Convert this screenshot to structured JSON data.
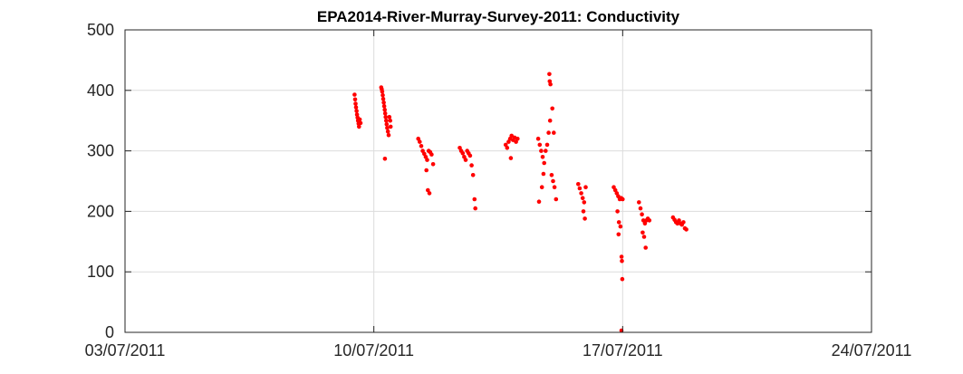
{
  "chart_data": {
    "type": "scatter",
    "title": "EPA2014-River-Murray-Survey-2011: Conductivity",
    "xlabel": "",
    "ylabel": "",
    "x_is_date": true,
    "xlim": [
      "2011-07-03",
      "2011-07-24"
    ],
    "ylim": [
      0,
      500
    ],
    "x_ticks": [
      {
        "value": "2011-07-03",
        "label": "03/07/2011"
      },
      {
        "value": "2011-07-10",
        "label": "10/07/2011"
      },
      {
        "value": "2011-07-17",
        "label": "17/07/2011"
      },
      {
        "value": "2011-07-24",
        "label": "24/07/2011"
      }
    ],
    "y_ticks": [
      0,
      100,
      200,
      300,
      400,
      500
    ],
    "grid": true,
    "marker_color": "#ff0000",
    "series": [
      {
        "name": "",
        "points": [
          [
            "2011-07-09T11:00",
            393
          ],
          [
            "2011-07-09T11:20",
            385
          ],
          [
            "2011-07-09T11:40",
            378
          ],
          [
            "2011-07-09T12:00",
            372
          ],
          [
            "2011-07-09T12:20",
            366
          ],
          [
            "2011-07-09T12:40",
            360
          ],
          [
            "2011-07-09T13:00",
            355
          ],
          [
            "2011-07-09T13:20",
            350
          ],
          [
            "2011-07-09T13:40",
            345
          ],
          [
            "2011-07-09T14:00",
            340
          ],
          [
            "2011-07-09T14:30",
            352
          ],
          [
            "2011-07-09T15:00",
            346
          ],
          [
            "2011-07-10T05:00",
            405
          ],
          [
            "2011-07-10T05:20",
            402
          ],
          [
            "2011-07-10T05:40",
            398
          ],
          [
            "2011-07-10T06:00",
            392
          ],
          [
            "2011-07-10T06:20",
            386
          ],
          [
            "2011-07-10T06:40",
            380
          ],
          [
            "2011-07-10T07:00",
            374
          ],
          [
            "2011-07-10T07:20",
            368
          ],
          [
            "2011-07-10T07:40",
            362
          ],
          [
            "2011-07-10T08:00",
            356
          ],
          [
            "2011-07-10T08:20",
            350
          ],
          [
            "2011-07-10T08:40",
            344
          ],
          [
            "2011-07-10T09:00",
            338
          ],
          [
            "2011-07-10T09:30",
            332
          ],
          [
            "2011-07-10T10:00",
            326
          ],
          [
            "2011-07-10T10:30",
            356
          ],
          [
            "2011-07-10T11:00",
            350
          ],
          [
            "2011-07-10T11:20",
            340
          ],
          [
            "2011-07-10T07:30",
            287
          ],
          [
            "2011-07-11T06:00",
            320
          ],
          [
            "2011-07-11T07:00",
            315
          ],
          [
            "2011-07-11T08:00",
            308
          ],
          [
            "2011-07-11T09:00",
            300
          ],
          [
            "2011-07-11T10:00",
            295
          ],
          [
            "2011-07-11T11:00",
            290
          ],
          [
            "2011-07-11T12:00",
            285
          ],
          [
            "2011-07-11T13:00",
            300
          ],
          [
            "2011-07-11T14:00",
            298
          ],
          [
            "2011-07-11T15:00",
            294
          ],
          [
            "2011-07-11T16:00",
            278
          ],
          [
            "2011-07-11T11:30",
            268
          ],
          [
            "2011-07-11T12:30",
            235
          ],
          [
            "2011-07-11T13:30",
            230
          ],
          [
            "2011-07-12T10:00",
            305
          ],
          [
            "2011-07-12T11:00",
            300
          ],
          [
            "2011-07-12T12:00",
            296
          ],
          [
            "2011-07-12T13:00",
            290
          ],
          [
            "2011-07-12T14:00",
            285
          ],
          [
            "2011-07-12T15:00",
            300
          ],
          [
            "2011-07-12T16:00",
            296
          ],
          [
            "2011-07-12T17:00",
            292
          ],
          [
            "2011-07-12T18:00",
            276
          ],
          [
            "2011-07-12T19:00",
            260
          ],
          [
            "2011-07-12T20:00",
            220
          ],
          [
            "2011-07-12T20:30",
            205
          ],
          [
            "2011-07-13T17:00",
            310
          ],
          [
            "2011-07-13T18:00",
            305
          ],
          [
            "2011-07-13T19:00",
            315
          ],
          [
            "2011-07-13T20:00",
            320
          ],
          [
            "2011-07-13T21:00",
            325
          ],
          [
            "2011-07-13T22:00",
            318
          ],
          [
            "2011-07-13T23:00",
            322
          ],
          [
            "2011-07-14T00:00",
            315
          ],
          [
            "2011-07-14T01:00",
            320
          ],
          [
            "2011-07-13T20:30",
            288
          ],
          [
            "2011-07-14T15:00",
            320
          ],
          [
            "2011-07-14T16:00",
            310
          ],
          [
            "2011-07-14T17:00",
            300
          ],
          [
            "2011-07-14T18:00",
            290
          ],
          [
            "2011-07-14T19:00",
            280
          ],
          [
            "2011-07-14T20:00",
            300
          ],
          [
            "2011-07-14T21:00",
            310
          ],
          [
            "2011-07-14T22:00",
            330
          ],
          [
            "2011-07-14T23:00",
            350
          ],
          [
            "2011-07-14T22:30",
            427
          ],
          [
            "2011-07-14T22:45",
            415
          ],
          [
            "2011-07-14T23:15",
            410
          ],
          [
            "2011-07-14T17:30",
            240
          ],
          [
            "2011-07-14T15:30",
            216
          ],
          [
            "2011-07-14T18:30",
            262
          ],
          [
            "2011-07-15T00:00",
            260
          ],
          [
            "2011-07-15T01:00",
            250
          ],
          [
            "2011-07-15T02:00",
            240
          ],
          [
            "2011-07-15T03:00",
            220
          ],
          [
            "2011-07-15T00:30",
            370
          ],
          [
            "2011-07-15T01:30",
            330
          ],
          [
            "2011-07-15T18:00",
            245
          ],
          [
            "2011-07-15T19:00",
            238
          ],
          [
            "2011-07-15T20:00",
            230
          ],
          [
            "2011-07-15T21:00",
            222
          ],
          [
            "2011-07-15T22:00",
            215
          ],
          [
            "2011-07-15T23:00",
            240
          ],
          [
            "2011-07-15T21:30",
            200
          ],
          [
            "2011-07-15T22:30",
            188
          ],
          [
            "2011-07-16T18:00",
            240
          ],
          [
            "2011-07-16T19:00",
            235
          ],
          [
            "2011-07-16T20:00",
            230
          ],
          [
            "2011-07-16T21:00",
            225
          ],
          [
            "2011-07-16T22:00",
            220
          ],
          [
            "2011-07-16T23:00",
            222
          ],
          [
            "2011-07-17T00:00",
            220
          ],
          [
            "2011-07-16T20:30",
            200
          ],
          [
            "2011-07-16T21:30",
            182
          ],
          [
            "2011-07-16T22:30",
            175
          ],
          [
            "2011-07-16T21:15",
            162
          ],
          [
            "2011-07-16T23:15",
            125
          ],
          [
            "2011-07-16T23:30",
            118
          ],
          [
            "2011-07-16T23:45",
            88
          ],
          [
            "2011-07-16T23:10",
            3
          ],
          [
            "2011-07-17T11:00",
            215
          ],
          [
            "2011-07-17T12:00",
            205
          ],
          [
            "2011-07-17T13:00",
            195
          ],
          [
            "2011-07-17T14:00",
            185
          ],
          [
            "2011-07-17T15:00",
            180
          ],
          [
            "2011-07-17T16:00",
            185
          ],
          [
            "2011-07-17T17:00",
            188
          ],
          [
            "2011-07-17T18:00",
            185
          ],
          [
            "2011-07-17T13:30",
            165
          ],
          [
            "2011-07-17T14:30",
            158
          ],
          [
            "2011-07-17T15:30",
            140
          ],
          [
            "2011-07-18T10:00",
            190
          ],
          [
            "2011-07-18T11:00",
            186
          ],
          [
            "2011-07-18T12:00",
            182
          ],
          [
            "2011-07-18T13:00",
            180
          ],
          [
            "2011-07-18T14:00",
            185
          ],
          [
            "2011-07-18T15:00",
            180
          ],
          [
            "2011-07-18T16:00",
            178
          ],
          [
            "2011-07-18T17:00",
            182
          ],
          [
            "2011-07-18T18:00",
            172
          ],
          [
            "2011-07-18T19:00",
            170
          ]
        ]
      }
    ]
  }
}
